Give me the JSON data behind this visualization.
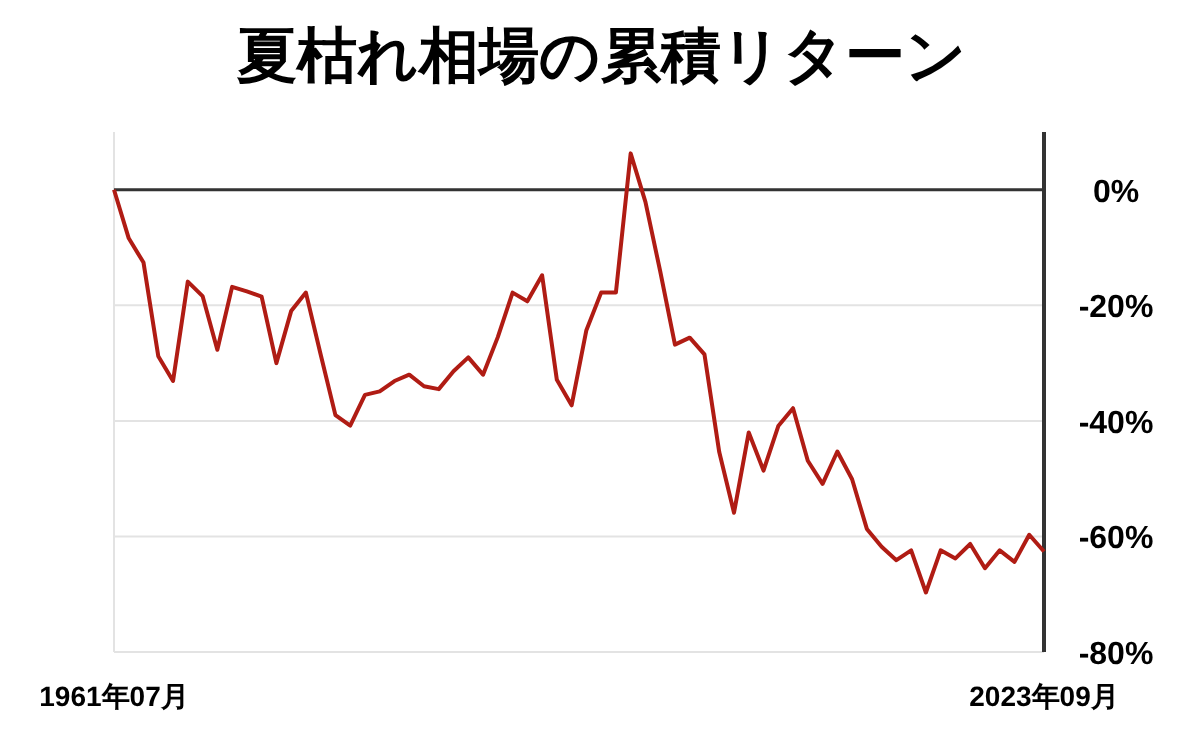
{
  "chart_data": {
    "type": "line",
    "title": "夏枯れ相場の累積リターン",
    "categories": [
      "1961年07月",
      null,
      null,
      null,
      null,
      null,
      null,
      null,
      null,
      null,
      null,
      null,
      null,
      null,
      null,
      null,
      null,
      null,
      null,
      null,
      null,
      null,
      null,
      null,
      null,
      null,
      null,
      null,
      null,
      null,
      null,
      null,
      null,
      null,
      null,
      null,
      null,
      null,
      null,
      null,
      null,
      null,
      null,
      null,
      null,
      null,
      null,
      null,
      null,
      null,
      null,
      null,
      null,
      null,
      null,
      null,
      null,
      null,
      null,
      null,
      null,
      null,
      null,
      "2023年09月"
    ],
    "values": [
      0,
      -8.4,
      -12.6,
      -28.8,
      -33.1,
      -15.9,
      -18.4,
      -27.7,
      -16.8,
      -17.6,
      -18.5,
      -30,
      -21,
      -17.8,
      -28.5,
      -39,
      -40.8,
      -35.5,
      -34.9,
      -33.1,
      -32,
      -34,
      -34.5,
      -31.4,
      -29,
      -32,
      -25.5,
      -17.8,
      -19.3,
      -14.8,
      -32.9,
      -37.3,
      -24.3,
      -17.8,
      -17.8,
      6.3,
      -2.1,
      -14.1,
      -26.8,
      -25.6,
      -28.5,
      -45.4,
      -55.9,
      -42,
      -48.6,
      -40.9,
      -37.8,
      -46.9,
      -50.9,
      -45.3,
      -50.1,
      -58.7,
      -61.8,
      -64.1,
      -62.4,
      -69.7,
      -62.4,
      -63.8,
      -61.3,
      -65.5,
      -62.4,
      -64.4,
      -59.7,
      -62.6
    ],
    "color": "#b01c14",
    "ylim": [
      -80,
      10
    ],
    "yticks": [
      {
        "value": 0,
        "label": "0%"
      },
      {
        "value": -20,
        "label": "-20%"
      },
      {
        "value": -40,
        "label": "-40%"
      },
      {
        "value": -60,
        "label": "-60%"
      },
      {
        "value": -80,
        "label": "-80%"
      }
    ],
    "grid": "y",
    "ref_lines": [
      {
        "axis": "y",
        "value": 0,
        "color": "#333333"
      }
    ]
  }
}
